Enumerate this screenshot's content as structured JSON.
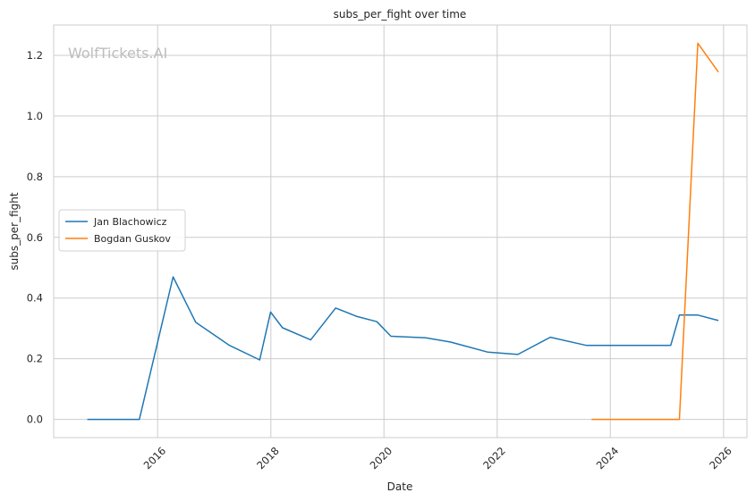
{
  "chart_data": {
    "type": "line",
    "title": "subs_per_fight over time",
    "xlabel": "Date",
    "ylabel": "subs_per_fight",
    "watermark": "WolfTickets.AI",
    "xlim": [
      "2014-03-01",
      "2026-06-01"
    ],
    "ylim": [
      -0.06,
      1.3
    ],
    "x_ticks": [
      {
        "date": "2016-01-01",
        "label": "2016"
      },
      {
        "date": "2018-01-01",
        "label": "2018"
      },
      {
        "date": "2020-01-01",
        "label": "2020"
      },
      {
        "date": "2022-01-01",
        "label": "2022"
      },
      {
        "date": "2024-01-01",
        "label": "2024"
      },
      {
        "date": "2026-01-01",
        "label": "2026"
      }
    ],
    "y_ticks": [
      {
        "value": 0.0,
        "label": "0.0"
      },
      {
        "value": 0.2,
        "label": "0.2"
      },
      {
        "value": 0.4,
        "label": "0.4"
      },
      {
        "value": 0.6,
        "label": "0.6"
      },
      {
        "value": 0.8,
        "label": "0.8"
      },
      {
        "value": 1.0,
        "label": "1.0"
      },
      {
        "value": 1.2,
        "label": "1.2"
      }
    ],
    "grid": true,
    "legend_position": "center-left",
    "series": [
      {
        "name": "Jan Blachowicz",
        "color": "#1f77b4",
        "points": [
          {
            "x": "2014-10-04",
            "y": 0.0
          },
          {
            "x": "2015-09-05",
            "y": 0.0
          },
          {
            "x": "2016-04-10",
            "y": 0.47
          },
          {
            "x": "2016-09-03",
            "y": 0.32
          },
          {
            "x": "2017-04-08",
            "y": 0.244
          },
          {
            "x": "2017-10-21",
            "y": 0.196
          },
          {
            "x": "2017-12-30",
            "y": 0.354
          },
          {
            "x": "2018-03-17",
            "y": 0.302
          },
          {
            "x": "2018-09-15",
            "y": 0.262
          },
          {
            "x": "2019-02-23",
            "y": 0.367
          },
          {
            "x": "2019-07-06",
            "y": 0.34
          },
          {
            "x": "2019-11-16",
            "y": 0.322
          },
          {
            "x": "2020-02-15",
            "y": 0.274
          },
          {
            "x": "2020-09-26",
            "y": 0.269
          },
          {
            "x": "2021-03-06",
            "y": 0.255
          },
          {
            "x": "2021-10-30",
            "y": 0.222
          },
          {
            "x": "2022-05-14",
            "y": 0.214
          },
          {
            "x": "2022-12-10",
            "y": 0.271
          },
          {
            "x": "2023-07-29",
            "y": 0.244
          },
          {
            "x": "2025-01-25",
            "y": 0.244
          },
          {
            "x": "2025-03-22",
            "y": 0.344
          },
          {
            "x": "2025-07-19",
            "y": 0.344
          },
          {
            "x": "2025-11-29",
            "y": 0.326
          }
        ]
      },
      {
        "name": "Bogdan Guskov",
        "color": "#ff7f0e",
        "points": [
          {
            "x": "2023-09-02",
            "y": 0.0
          },
          {
            "x": "2025-03-22",
            "y": 0.0
          },
          {
            "x": "2025-07-19",
            "y": 1.24
          },
          {
            "x": "2025-11-29",
            "y": 1.145
          }
        ]
      }
    ]
  }
}
